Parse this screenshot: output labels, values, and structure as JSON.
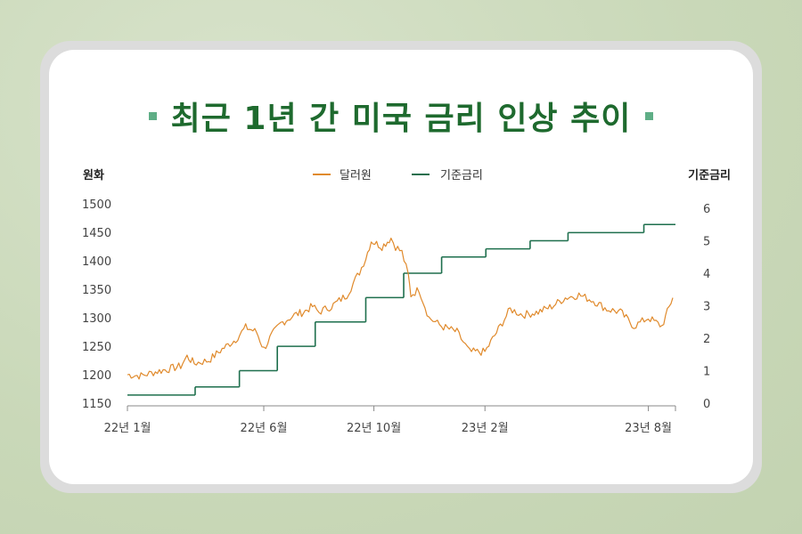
{
  "title": "최근 1년 간 미국 금리 인상 추이",
  "chart_data": {
    "type": "line",
    "left_axis_label": "원화",
    "right_axis_label": "기준금리",
    "left_ylim": [
      1150,
      1500
    ],
    "left_ticks": [
      "1500",
      "1450",
      "1400",
      "1350",
      "1300",
      "1250",
      "1200",
      "1150"
    ],
    "right_ylim": [
      0,
      6
    ],
    "right_ticks": [
      "6",
      "5",
      "4",
      "3",
      "2",
      "1",
      "0"
    ],
    "x_ticks": [
      "22년 1월",
      "22년 6월",
      "22년 10월",
      "23년 2월",
      "23년 8월"
    ],
    "legend": [
      "달러원",
      "기준금리"
    ],
    "legend_position": "top-center",
    "colors": {
      "won": "#e08a2c",
      "rate": "#1e6f4d",
      "axis": "#888888",
      "title": "#1e6a2e"
    },
    "series": [
      {
        "name": "달러원",
        "axis": "left",
        "x": [
          "2022-01-01",
          "2022-01-16",
          "2022-02-01",
          "2022-02-16",
          "2022-03-01",
          "2022-03-08",
          "2022-03-16",
          "2022-04-01",
          "2022-04-16",
          "2022-05-01",
          "2022-05-12",
          "2022-05-24",
          "2022-06-01",
          "2022-06-10",
          "2022-06-20",
          "2022-06-30",
          "2022-07-05",
          "2022-07-15",
          "2022-07-25",
          "2022-08-01",
          "2022-08-15",
          "2022-09-01",
          "2022-09-15",
          "2022-09-22",
          "2022-09-28",
          "2022-10-10",
          "2022-10-20",
          "2022-10-25",
          "2022-11-01",
          "2022-11-08",
          "2022-11-11",
          "2022-11-20",
          "2022-12-01",
          "2022-12-15",
          "2023-01-01",
          "2023-01-15",
          "2023-02-01",
          "2023-02-16",
          "2023-03-01",
          "2023-03-15",
          "2023-04-01",
          "2023-04-16",
          "2023-05-01",
          "2023-05-16",
          "2023-06-01",
          "2023-06-16",
          "2023-07-01",
          "2023-07-16",
          "2023-08-01",
          "2023-08-16",
          "2023-08-28"
        ],
        "values": [
          1200,
          1198,
          1205,
          1210,
          1215,
          1232,
          1220,
          1225,
          1245,
          1262,
          1283,
          1275,
          1245,
          1270,
          1290,
          1300,
          1305,
          1310,
          1320,
          1310,
          1320,
          1340,
          1380,
          1405,
          1435,
          1425,
          1440,
          1425,
          1415,
          1375,
          1340,
          1350,
          1300,
          1285,
          1275,
          1240,
          1240,
          1280,
          1315,
          1305,
          1310,
          1320,
          1335,
          1340,
          1330,
          1315,
          1310,
          1285,
          1300,
          1285,
          1335
        ]
      },
      {
        "name": "기준금리",
        "axis": "right",
        "x": [
          "2022-01-01",
          "2022-03-17",
          "2022-05-05",
          "2022-06-16",
          "2022-07-28",
          "2022-09-22",
          "2022-11-03",
          "2022-12-15",
          "2023-02-02",
          "2023-03-23",
          "2023-05-04",
          "2023-07-27",
          "2023-08-31"
        ],
        "values": [
          0.25,
          0.5,
          1.0,
          1.75,
          2.5,
          3.25,
          4.0,
          4.5,
          4.75,
          5.0,
          5.25,
          5.5,
          5.5
        ]
      }
    ]
  }
}
